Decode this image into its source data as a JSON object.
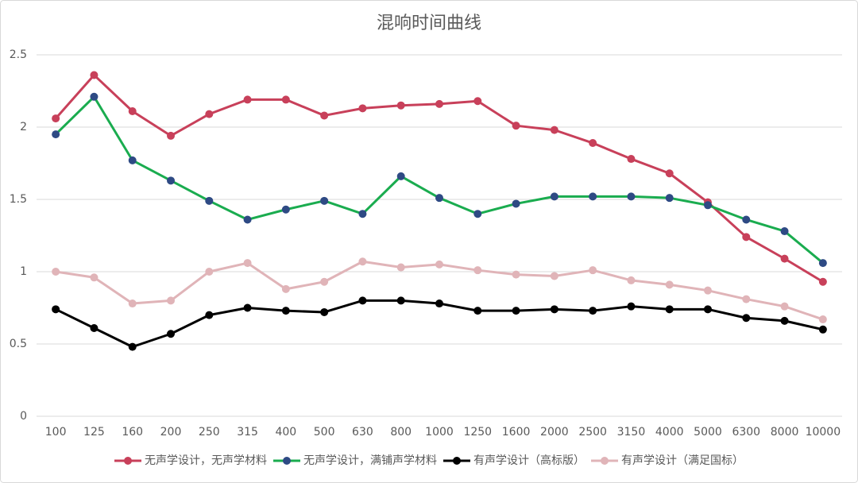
{
  "chart_data": {
    "type": "line",
    "title": "混响时间曲线",
    "categories": [
      "100",
      "125",
      "160",
      "200",
      "250",
      "315",
      "400",
      "500",
      "630",
      "800",
      "1000",
      "1250",
      "1600",
      "2000",
      "2500",
      "3150",
      "4000",
      "5000",
      "6300",
      "8000",
      "10000"
    ],
    "ylim": [
      0,
      2.5
    ],
    "yticks": [
      0,
      0.5,
      1,
      1.5,
      2,
      2.5
    ],
    "grid": true,
    "legend": "bottom",
    "series": [
      {
        "name": "无声学设计，无声学材料",
        "color": "#c8405a",
        "marker_color": "#c8405a",
        "values": [
          2.06,
          2.36,
          2.11,
          1.94,
          2.09,
          2.19,
          2.19,
          2.08,
          2.13,
          2.15,
          2.16,
          2.18,
          2.01,
          1.98,
          1.89,
          1.78,
          1.68,
          1.48,
          1.24,
          1.09,
          0.93
        ]
      },
      {
        "name": "无声学设计，满铺声学材料",
        "color": "#1aac4f",
        "marker_color": "#2e4a84",
        "values": [
          1.95,
          2.21,
          1.77,
          1.63,
          1.49,
          1.36,
          1.43,
          1.49,
          1.4,
          1.66,
          1.51,
          1.4,
          1.47,
          1.52,
          1.52,
          1.52,
          1.51,
          1.46,
          1.36,
          1.28,
          1.06
        ]
      },
      {
        "name": "有声学设计（高标版）",
        "color": "#000000",
        "marker_color": "#000000",
        "values": [
          0.74,
          0.61,
          0.48,
          0.57,
          0.7,
          0.75,
          0.73,
          0.72,
          0.8,
          0.8,
          0.78,
          0.73,
          0.73,
          0.74,
          0.73,
          0.76,
          0.74,
          0.74,
          0.68,
          0.66,
          0.6
        ]
      },
      {
        "name": "有声学设计（满足国标）",
        "color": "#e0b4b8",
        "marker_color": "#e0b4b8",
        "values": [
          1.0,
          0.96,
          0.78,
          0.8,
          1.0,
          1.06,
          0.88,
          0.93,
          1.07,
          1.03,
          1.05,
          1.01,
          0.98,
          0.97,
          1.01,
          0.94,
          0.91,
          0.87,
          0.81,
          0.76,
          0.67
        ]
      }
    ]
  }
}
